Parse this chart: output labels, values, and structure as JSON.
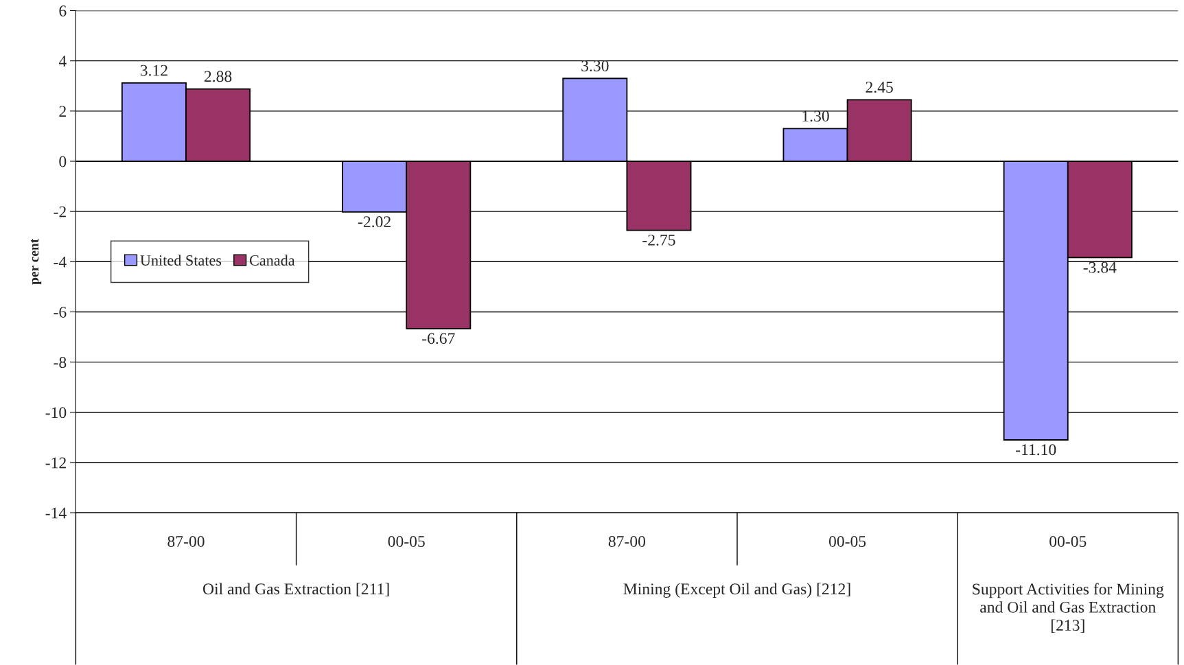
{
  "chart_data": {
    "type": "bar",
    "ylabel": "per cent",
    "categories": [
      "87-00",
      "00-05",
      "87-00",
      "00-05",
      "00-05"
    ],
    "series": [
      {
        "name": "United States",
        "color": "#9999ff",
        "values": [
          3.12,
          -2.02,
          3.3,
          1.3,
          -11.1
        ],
        "value_labels": [
          "3.12",
          "-2.02",
          "3.30",
          "1.30",
          "-11.10"
        ]
      },
      {
        "name": "Canada",
        "color": "#993366",
        "values": [
          2.88,
          -6.67,
          -2.75,
          2.45,
          -3.84
        ],
        "value_labels": [
          "2.88",
          "-6.67",
          "-2.75",
          "2.45",
          "-3.84"
        ]
      }
    ],
    "annotations": [
      "Oil and Gas Extraction [211]",
      "Mining (Except Oil and Gas) [212]",
      "Support Activities for Mining and Oil and Gas Extraction [213]"
    ],
    "ylim": [
      -14,
      6
    ],
    "yticks": [
      -14,
      -12,
      -10,
      -8,
      -6,
      -4,
      -2,
      0,
      2,
      4,
      6
    ],
    "grid": "y",
    "legend": "center left"
  }
}
